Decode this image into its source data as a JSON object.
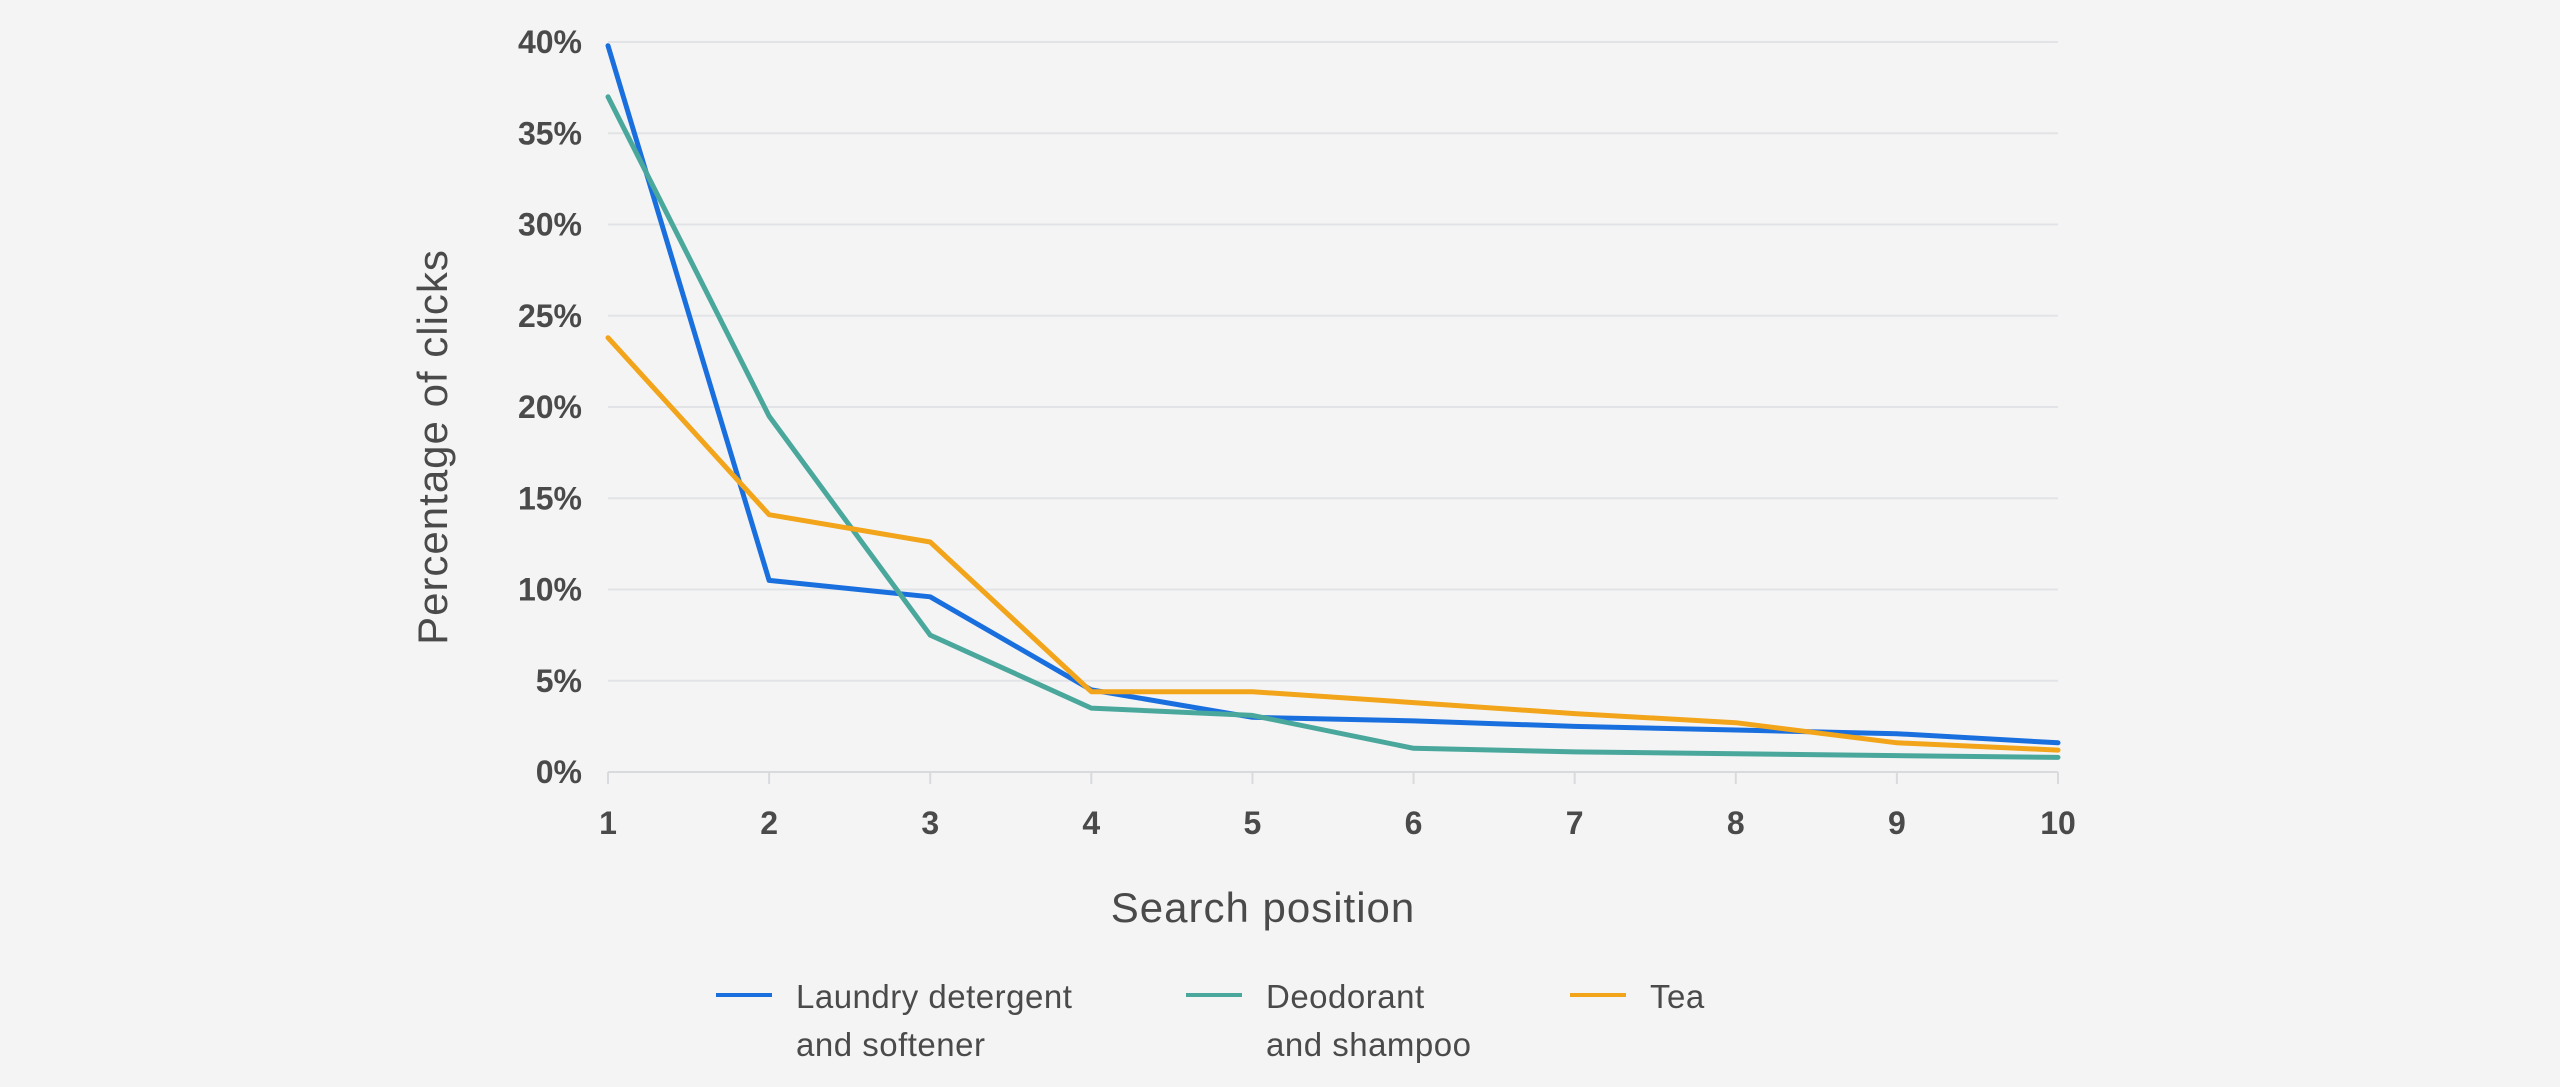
{
  "chart_data": {
    "type": "line",
    "title": "",
    "xlabel": "Search position",
    "ylabel": "Percentage of clicks",
    "x": [
      1,
      2,
      3,
      4,
      5,
      6,
      7,
      8,
      9,
      10
    ],
    "xticks": [
      "1",
      "2",
      "3",
      "4",
      "5",
      "6",
      "7",
      "8",
      "9",
      "10"
    ],
    "ylim": [
      0,
      40
    ],
    "yticks": [
      "0%",
      "5%",
      "10%",
      "15%",
      "20%",
      "25%",
      "30%",
      "35%",
      "40%"
    ],
    "grid": true,
    "legend_position": "bottom",
    "series": [
      {
        "name": "Laundry detergent and softener",
        "legend_lines": [
          "Laundry detergent",
          "and softener"
        ],
        "color": "#1a6fdf",
        "values": [
          39.8,
          10.5,
          9.6,
          4.5,
          3.0,
          2.8,
          2.5,
          2.3,
          2.1,
          1.6
        ]
      },
      {
        "name": "Deodorant and shampoo",
        "legend_lines": [
          "Deodorant",
          "and shampoo"
        ],
        "color": "#4aa79c",
        "values": [
          37.0,
          19.5,
          7.5,
          3.5,
          3.1,
          1.3,
          1.1,
          1.0,
          0.9,
          0.8
        ]
      },
      {
        "name": "Tea",
        "legend_lines": [
          "Tea"
        ],
        "color": "#f2a41a",
        "values": [
          23.8,
          14.1,
          12.6,
          4.4,
          4.4,
          3.8,
          3.2,
          2.7,
          1.6,
          1.2
        ]
      }
    ]
  }
}
